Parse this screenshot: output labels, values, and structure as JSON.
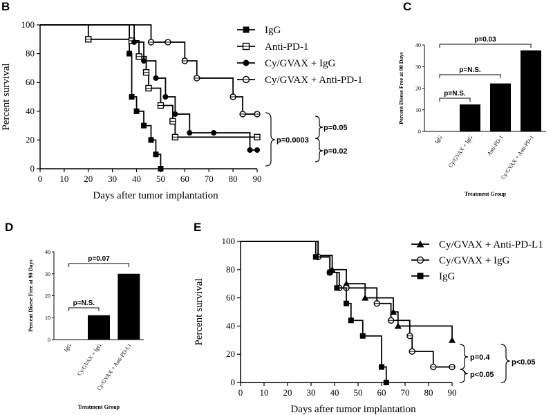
{
  "panels": {
    "B": "B",
    "C": "C",
    "D": "D",
    "E": "E"
  },
  "chart_data": [
    {
      "id": "B",
      "type": "line",
      "subtype": "kaplan-meier",
      "xlabel": "Days after tumor implantation",
      "ylabel": "Percent survival",
      "xlim": [
        0,
        90
      ],
      "ylim": [
        0,
        100
      ],
      "xticks": [
        0,
        10,
        20,
        30,
        40,
        50,
        60,
        70,
        80,
        90
      ],
      "yticks": [
        0,
        20,
        40,
        60,
        80,
        100
      ],
      "series": [
        {
          "name": "IgG",
          "marker": "square-filled",
          "x": [
            0,
            37,
            38,
            40,
            43,
            46,
            48,
            50
          ],
          "y": [
            100,
            80,
            50,
            40,
            30,
            20,
            10,
            0
          ]
        },
        {
          "name": "Anti-PD-1",
          "marker": "square-open",
          "x": [
            0,
            20,
            38,
            41,
            44,
            45,
            50,
            55,
            56,
            90
          ],
          "y": [
            100,
            90,
            89,
            78,
            67,
            56,
            44,
            33,
            22,
            22
          ]
        },
        {
          "name": "Cy/GVAX + IgG",
          "marker": "circle-filled",
          "x": [
            0,
            39,
            43,
            48,
            52,
            56,
            62,
            72,
            87,
            90
          ],
          "y": [
            100,
            88,
            75,
            63,
            50,
            38,
            25,
            25,
            13,
            13
          ]
        },
        {
          "name": "Cy/GVAX + Anti-PD-1",
          "marker": "circle-open",
          "x": [
            0,
            46,
            53,
            60,
            65,
            80,
            84,
            90
          ],
          "y": [
            100,
            88,
            88,
            75,
            63,
            50,
            38,
            38
          ]
        }
      ],
      "annotations": [
        "p=0.05",
        "p=0.02",
        "p=0.0003"
      ]
    },
    {
      "id": "C",
      "type": "bar",
      "title": "",
      "xlabel": "Treatment Group",
      "ylabel": "Percent Disese Free at 90 Days",
      "ylim": [
        0,
        40
      ],
      "yticks": [
        0,
        10,
        20,
        30,
        40
      ],
      "categories": [
        "IgG",
        "Cy/GVAX + IgG",
        "Anti-PD-1",
        "Cy/GVAX + Anti-PD-1"
      ],
      "values": [
        0,
        12.5,
        22.2,
        37.5
      ],
      "annotations": [
        "p=N.S.",
        "p=N.S.",
        "p=0.03"
      ]
    },
    {
      "id": "D",
      "type": "bar",
      "xlabel": "Treatment Group",
      "ylabel": "Percent Disese Free at 90 Days",
      "ylim": [
        0,
        40
      ],
      "yticks": [
        0,
        10,
        20,
        30,
        40
      ],
      "categories": [
        "IgG",
        "Cy/GVAX + IgG",
        "Cy/GVAX + Anti-PD-L1"
      ],
      "values": [
        0,
        11.1,
        30
      ],
      "annotations": [
        "p=N.S.",
        "p=0.07"
      ]
    },
    {
      "id": "E",
      "type": "line",
      "subtype": "kaplan-meier",
      "xlabel": "Days after tumor implantation",
      "ylabel": "Percent survival",
      "xlim": [
        0,
        90
      ],
      "ylim": [
        0,
        100
      ],
      "xticks": [
        0,
        10,
        20,
        30,
        40,
        50,
        60,
        70,
        80,
        90
      ],
      "yticks": [
        0,
        20,
        40,
        60,
        80,
        100
      ],
      "series": [
        {
          "name": "Cy/GVAX + Anti-PD-L1",
          "marker": "triangle-filled",
          "x": [
            0,
            33,
            39,
            45,
            53,
            65,
            67,
            90
          ],
          "y": [
            100,
            90,
            80,
            70,
            60,
            50,
            40,
            30
          ]
        },
        {
          "name": "Cy/GVAX + IgG",
          "marker": "circle-open",
          "x": [
            0,
            33,
            38,
            42,
            45,
            58,
            64,
            72,
            73,
            82,
            90
          ],
          "y": [
            100,
            89,
            78,
            67,
            67,
            56,
            44,
            33,
            22,
            11,
            11
          ]
        },
        {
          "name": "IgG",
          "marker": "square-filled",
          "x": [
            0,
            32,
            38,
            41,
            45,
            47,
            52,
            60,
            62
          ],
          "y": [
            100,
            89,
            78,
            67,
            56,
            44,
            33,
            11,
            0
          ]
        }
      ],
      "annotations": [
        "p=0.4",
        "p<0.05",
        "p<0.05"
      ]
    }
  ]
}
